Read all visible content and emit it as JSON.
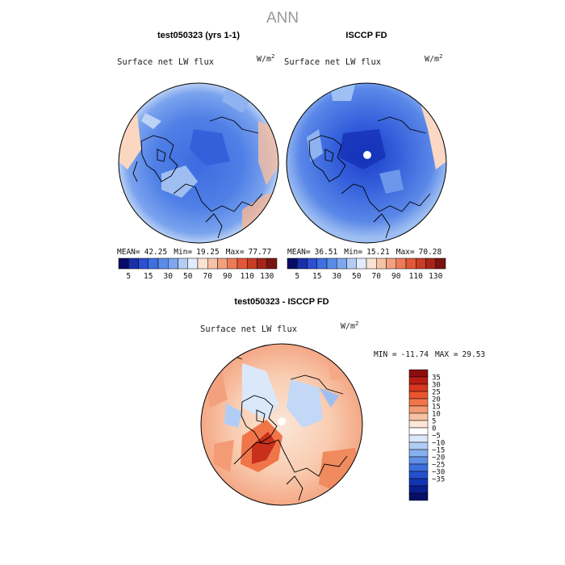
{
  "page_title": "ANN",
  "chart_data": [
    {
      "type": "heatmap",
      "projection": "north-polar-stereographic",
      "title": "test050323 (yrs 1-1)",
      "variable": "Surface net LW flux",
      "units": "W/m",
      "units_sup": "2",
      "stats": {
        "mean_label": "MEAN=",
        "mean": "42.25",
        "min_label": "Min=",
        "min": "19.25",
        "max_label": "Max=",
        "max": "77.77"
      },
      "colorbar": {
        "orientation": "horizontal",
        "tick_labels": [
          "5",
          "15",
          "30",
          "50",
          "70",
          "90",
          "110",
          "130"
        ],
        "colors": [
          "#080c68",
          "#1a30a8",
          "#2c50d0",
          "#3e70e0",
          "#5a8ce8",
          "#7fa7ee",
          "#b4cdf5",
          "#e2ecfb",
          "#fbe3d3",
          "#f7c3a8",
          "#f3a07f",
          "#ec7b59",
          "#e05838",
          "#c83d25",
          "#a52618",
          "#7a1410"
        ]
      },
      "field_tone": "mostly 20-50 W/m2 (blue), warmer at low-latitude edges"
    },
    {
      "type": "heatmap",
      "projection": "north-polar-stereographic",
      "title": "ISCCP FD",
      "variable": "Surface net LW flux",
      "units": "W/m",
      "units_sup": "2",
      "stats": {
        "mean_label": "MEAN=",
        "mean": "36.51",
        "min_label": "Min=",
        "min": "15.21",
        "max_label": "Max=",
        "max": "70.28"
      },
      "colorbar": {
        "orientation": "horizontal",
        "tick_labels": [
          "5",
          "15",
          "30",
          "50",
          "70",
          "90",
          "110",
          "130"
        ],
        "colors": [
          "#080c68",
          "#1a30a8",
          "#2c50d0",
          "#3e70e0",
          "#5a8ce8",
          "#7fa7ee",
          "#b4cdf5",
          "#e2ecfb",
          "#fbe3d3",
          "#f7c3a8",
          "#f3a07f",
          "#ec7b59",
          "#e05838",
          "#c83d25",
          "#a52618",
          "#7a1410"
        ]
      },
      "field_tone": "darker blue over central Arctic, missing data at pole"
    },
    {
      "type": "heatmap",
      "projection": "north-polar-stereographic",
      "title": "test050323 - ISCCP FD",
      "variable": "Surface net LW flux",
      "units": "W/m",
      "units_sup": "2",
      "stats": {
        "min_label": "MIN =",
        "min": "-11.74",
        "max_label": "MAX =",
        "max": "29.53"
      },
      "colorbar": {
        "orientation": "vertical",
        "tick_labels": [
          "35",
          "30",
          "25",
          "20",
          "15",
          "10",
          "5",
          "0",
          "−5",
          "−10",
          "−15",
          "−20",
          "−25",
          "−30",
          "−35"
        ],
        "colors": [
          "#8b0d0d",
          "#b81d14",
          "#d8361f",
          "#e9542e",
          "#f07548",
          "#f49a74",
          "#f8c1a4",
          "#fde6d6",
          "#ffffff",
          "#dbe8fb",
          "#b1cdf5",
          "#88afee",
          "#5f8fe6",
          "#3d6fdc",
          "#2550cc",
          "#1234b2",
          "#091f8e",
          "#050f66"
        ]
      },
      "field_tone": "mostly positive (orange/red), light blue patches over Arctic"
    }
  ]
}
